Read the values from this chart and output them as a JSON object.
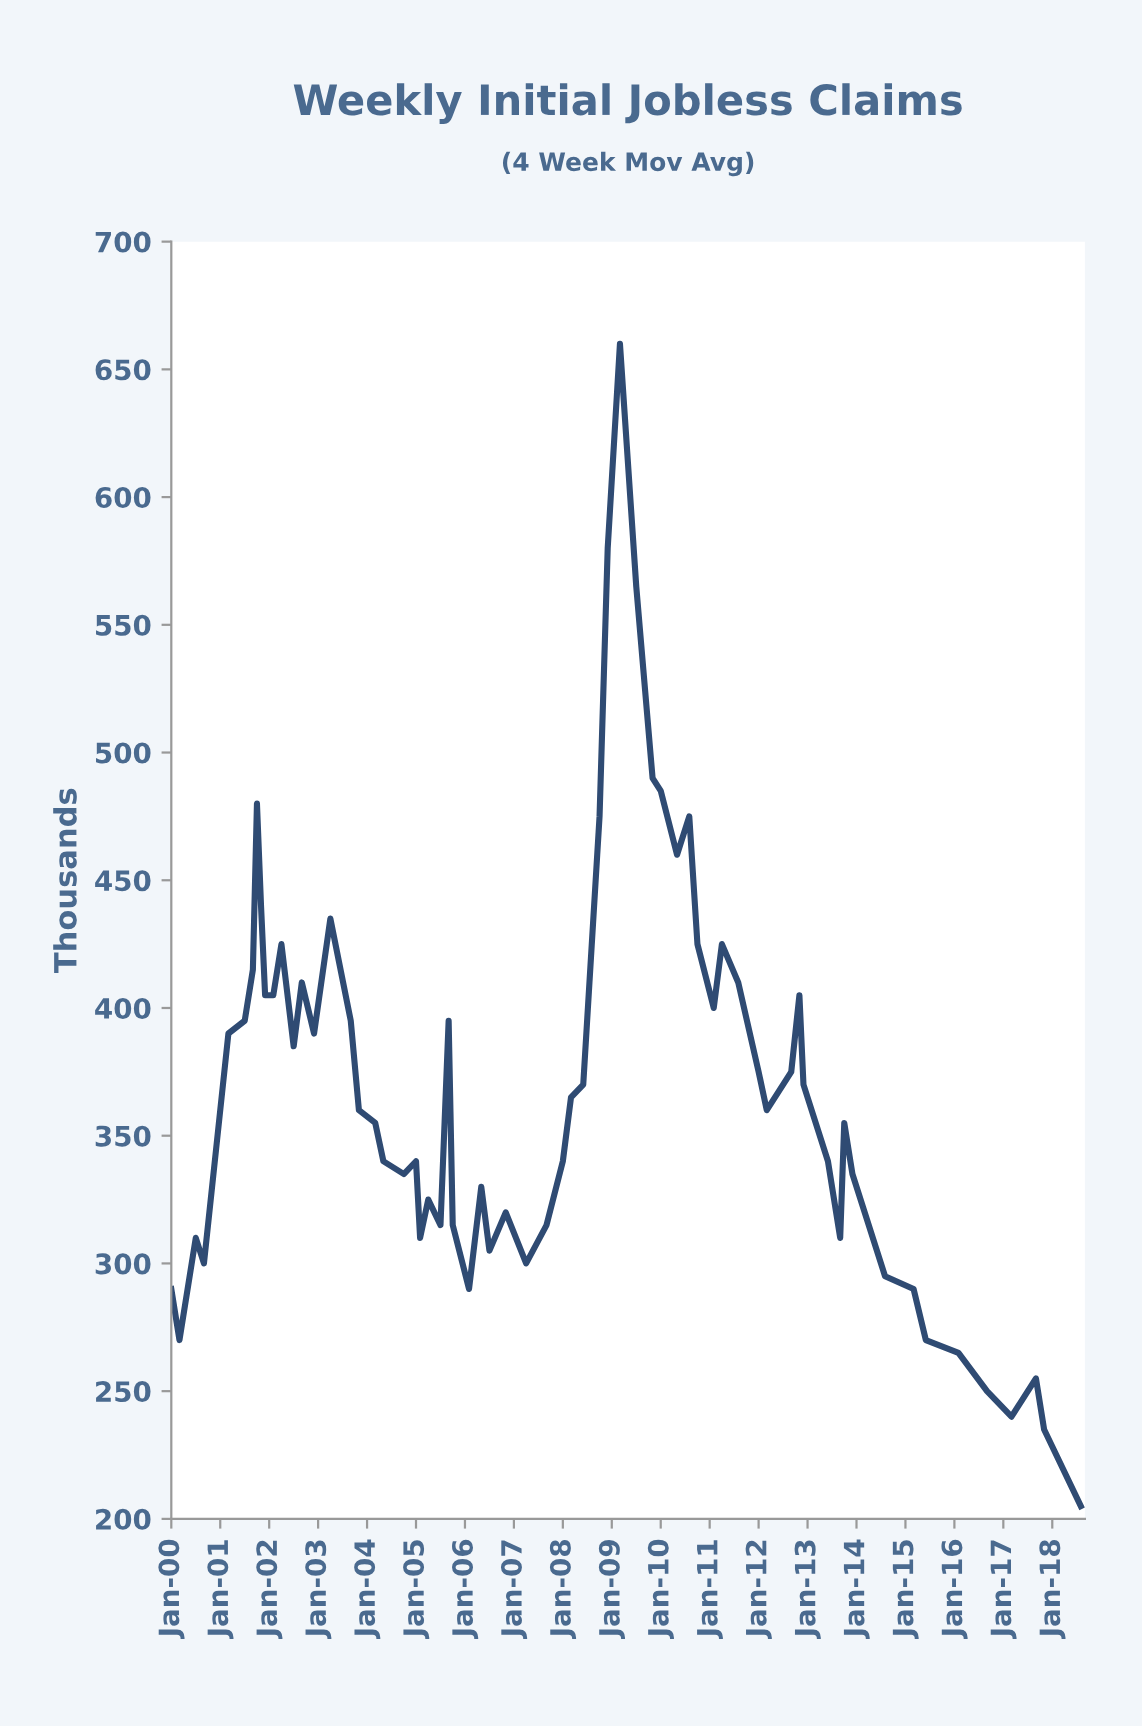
{
  "chart_data": {
    "type": "line",
    "title": "Weekly Initial Jobless Claims",
    "subtitle": "(4 Week Mov Avg)",
    "ylabel": "Thousands",
    "x": [
      "2000-01",
      "2000-03",
      "2000-07",
      "2000-09",
      "2000-12",
      "2001-03",
      "2001-07",
      "2001-09",
      "2001-10",
      "2001-11",
      "2001-12",
      "2002-02",
      "2002-04",
      "2002-07",
      "2002-09",
      "2002-12",
      "2003-04",
      "2003-09",
      "2003-11",
      "2004-03",
      "2004-05",
      "2004-10",
      "2005-01",
      "2005-02",
      "2005-04",
      "2005-07",
      "2005-09",
      "2005-10",
      "2006-02",
      "2006-05",
      "2006-07",
      "2006-11",
      "2007-04",
      "2007-09",
      "2008-01",
      "2008-03",
      "2008-06",
      "2008-10",
      "2008-12",
      "2009-03",
      "2009-07",
      "2009-11",
      "2010-01",
      "2010-05",
      "2010-08",
      "2010-10",
      "2011-02",
      "2011-04",
      "2011-08",
      "2012-01",
      "2012-03",
      "2012-09",
      "2012-11",
      "2012-12",
      "2013-06",
      "2013-09",
      "2013-10",
      "2013-12",
      "2014-08",
      "2015-03",
      "2015-06",
      "2016-02",
      "2016-09",
      "2017-03",
      "2017-09",
      "2017-11",
      "2018-08"
    ],
    "series": [
      {
        "color": "#2f4b73",
        "values": [
          290,
          270,
          310,
          300,
          345,
          390,
          395,
          415,
          480,
          440,
          405,
          405,
          425,
          385,
          410,
          390,
          435,
          395,
          360,
          355,
          340,
          335,
          340,
          310,
          325,
          315,
          395,
          315,
          290,
          330,
          305,
          320,
          300,
          315,
          340,
          365,
          370,
          475,
          580,
          660,
          565,
          490,
          485,
          460,
          475,
          425,
          400,
          425,
          410,
          375,
          360,
          375,
          405,
          370,
          340,
          310,
          355,
          335,
          295,
          290,
          270,
          265,
          250,
          240,
          255,
          235,
          205
        ]
      }
    ],
    "xlim": [
      "2000-01",
      "2018-09"
    ],
    "xticks": [
      {
        "value": "2000-01",
        "label": "Jan-00"
      },
      {
        "value": "2001-01",
        "label": "Jan-01"
      },
      {
        "value": "2002-01",
        "label": "Jan-02"
      },
      {
        "value": "2003-01",
        "label": "Jan-03"
      },
      {
        "value": "2004-01",
        "label": "Jan-04"
      },
      {
        "value": "2005-01",
        "label": "Jan-05"
      },
      {
        "value": "2006-01",
        "label": "Jan-06"
      },
      {
        "value": "2007-01",
        "label": "Jan-07"
      },
      {
        "value": "2008-01",
        "label": "Jan-08"
      },
      {
        "value": "2009-01",
        "label": "Jan-09"
      },
      {
        "value": "2010-01",
        "label": "Jan-10"
      },
      {
        "value": "2011-01",
        "label": "Jan-11"
      },
      {
        "value": "2012-01",
        "label": "Jan-12"
      },
      {
        "value": "2013-01",
        "label": "Jan-13"
      },
      {
        "value": "2014-01",
        "label": "Jan-14"
      },
      {
        "value": "2015-01",
        "label": "Jan-15"
      },
      {
        "value": "2016-01",
        "label": "Jan-16"
      },
      {
        "value": "2017-01",
        "label": "Jan-17"
      },
      {
        "value": "2018-01",
        "label": "Jan-18"
      }
    ],
    "ylim": [
      200,
      700
    ],
    "yticks": [
      200,
      250,
      300,
      350,
      400,
      450,
      500,
      550,
      600,
      650,
      700
    ],
    "grid": false
  }
}
